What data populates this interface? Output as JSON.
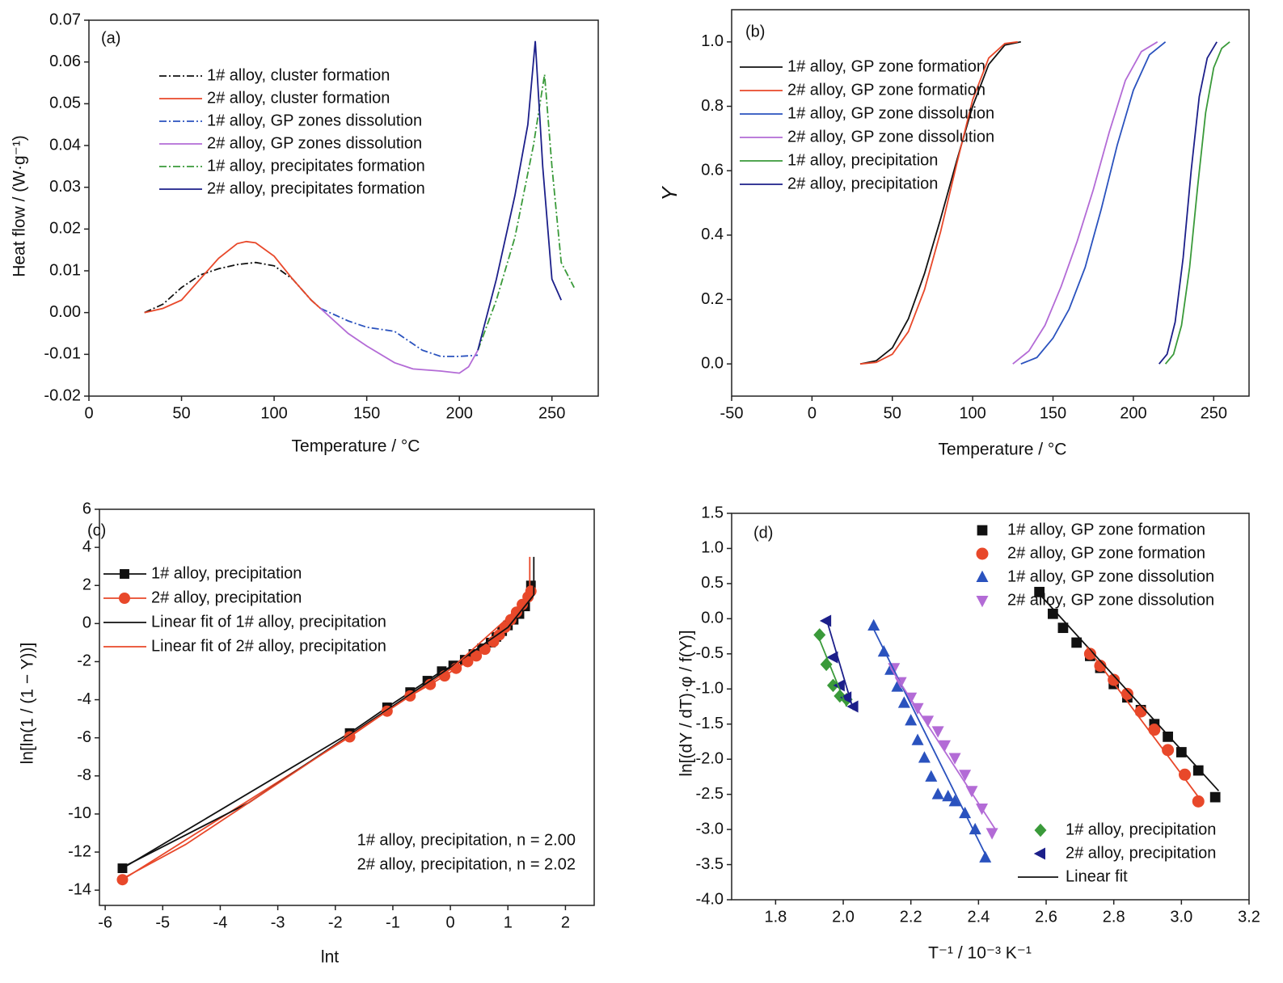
{
  "chart_data": [
    {
      "type": "line",
      "panel_label": "(a)",
      "x_label": "Temperature / °C",
      "y_label": "Heat flow / (W·g⁻¹)",
      "xlim": [
        0,
        275
      ],
      "xticks": [
        0,
        50,
        100,
        150,
        200,
        250
      ],
      "ylim": [
        -0.02,
        0.07
      ],
      "yticks": [
        -0.02,
        -0.01,
        {
          "value": 0,
          "label": "0.00"
        },
        0.01,
        0.02,
        0.03,
        0.04,
        0.05,
        0.06,
        0.07
      ],
      "legend_loc": "upper left",
      "series": [
        {
          "name": "1# alloy, cluster formation",
          "color": "#111111",
          "dash": "dashdot",
          "x": [
            30,
            40,
            50,
            60,
            70,
            80,
            90,
            100,
            110,
            120,
            125
          ],
          "values": [
            0,
            0.002,
            0.006,
            0.009,
            0.0105,
            0.0115,
            0.012,
            0.0112,
            0.008,
            0.003,
            0.001
          ]
        },
        {
          "name": "2# alloy, cluster formation",
          "color": "#e8482a",
          "x": [
            30,
            40,
            50,
            60,
            70,
            80,
            85,
            90,
            100,
            110,
            120,
            125
          ],
          "values": [
            0,
            0.001,
            0.003,
            0.008,
            0.013,
            0.0165,
            0.017,
            0.0167,
            0.0135,
            0.008,
            0.003,
            0.001
          ]
        },
        {
          "name": "1# alloy, GP zones dissolution",
          "color": "#2a52be",
          "dash": "dashdot",
          "x": [
            125,
            140,
            150,
            165,
            180,
            190,
            200,
            210
          ],
          "values": [
            0.001,
            -0.002,
            -0.0035,
            -0.0045,
            -0.009,
            -0.0105,
            -0.0105,
            -0.0102
          ]
        },
        {
          "name": "2# alloy, GP zones dissolution",
          "color": "#b36bd6",
          "x": [
            125,
            140,
            150,
            165,
            175,
            190,
            200,
            205,
            210
          ],
          "values": [
            0.001,
            -0.005,
            -0.008,
            -0.012,
            -0.0135,
            -0.014,
            -0.0145,
            -0.013,
            -0.009
          ]
        },
        {
          "name": "1# alloy, precipitates formation",
          "color": "#3a9a3a",
          "dash": "dashdot",
          "x": [
            210,
            220,
            230,
            240,
            246,
            250,
            255,
            262
          ],
          "values": [
            -0.009,
            0.003,
            0.018,
            0.04,
            0.057,
            0.035,
            0.012,
            0.006
          ]
        },
        {
          "name": "2# alloy, precipitates formation",
          "color": "#1c1f8a",
          "x": [
            210,
            220,
            230,
            237,
            241,
            245,
            250,
            255
          ],
          "values": [
            -0.009,
            0.008,
            0.028,
            0.045,
            0.065,
            0.035,
            0.008,
            0.003
          ]
        }
      ]
    },
    {
      "type": "line",
      "panel_label": "(b)",
      "x_label": "Temperature / °C",
      "y_label": "Y",
      "xlim": [
        -50,
        272
      ],
      "xticks": [
        -50,
        0,
        50,
        100,
        150,
        200,
        250
      ],
      "ylim": [
        -0.1,
        1.1
      ],
      "yticks": [
        {
          "value": 0,
          "label": "0.0"
        },
        0.2,
        0.4,
        0.6,
        0.8,
        {
          "value": 1,
          "label": "1.0"
        }
      ],
      "legend_loc": "upper left",
      "series": [
        {
          "name": "1# alloy, GP zone formation",
          "color": "#111111",
          "x": [
            30,
            40,
            50,
            60,
            70,
            80,
            90,
            100,
            110,
            120,
            130
          ],
          "values": [
            0,
            0.01,
            0.05,
            0.14,
            0.28,
            0.45,
            0.63,
            0.8,
            0.93,
            0.99,
            1.0
          ]
        },
        {
          "name": "2# alloy, GP zone formation",
          "color": "#e8482a",
          "x": [
            30,
            40,
            50,
            60,
            70,
            80,
            90,
            100,
            110,
            120,
            128
          ],
          "values": [
            0,
            0.005,
            0.03,
            0.1,
            0.23,
            0.41,
            0.62,
            0.82,
            0.95,
            0.995,
            1.0
          ]
        },
        {
          "name": "1# alloy, GP zone dissolution",
          "color": "#2a52be",
          "x": [
            130,
            140,
            150,
            160,
            170,
            180,
            190,
            200,
            210,
            220
          ],
          "values": [
            0,
            0.02,
            0.08,
            0.17,
            0.3,
            0.48,
            0.68,
            0.85,
            0.96,
            1.0
          ]
        },
        {
          "name": "2# alloy, GP zone dissolution",
          "color": "#b36bd6",
          "x": [
            125,
            135,
            145,
            155,
            165,
            175,
            185,
            195,
            205,
            215
          ],
          "values": [
            0,
            0.04,
            0.12,
            0.24,
            0.38,
            0.54,
            0.72,
            0.88,
            0.97,
            1.0
          ]
        },
        {
          "name": "1# alloy, precipitation",
          "color": "#3a9a3a",
          "x": [
            220,
            225,
            230,
            235,
            240,
            245,
            250,
            255,
            260
          ],
          "values": [
            0,
            0.03,
            0.12,
            0.3,
            0.55,
            0.78,
            0.92,
            0.98,
            1.0
          ]
        },
        {
          "name": "2# alloy, precipitation",
          "color": "#1c1f8a",
          "x": [
            216,
            221,
            226,
            231,
            236,
            241,
            246,
            252
          ],
          "values": [
            0,
            0.03,
            0.13,
            0.33,
            0.6,
            0.83,
            0.95,
            1.0
          ]
        }
      ]
    },
    {
      "type": "scatter",
      "panel_label": "(c)",
      "x_label": "lnt",
      "y_label": "ln[ln(1 / (1 − Y))]",
      "xlim": [
        -6.1,
        2.5
      ],
      "xticks": [
        -6,
        -5,
        -4,
        -3,
        -2,
        -1,
        0,
        1,
        2
      ],
      "ylim": [
        -14.8,
        6
      ],
      "yticks": [
        -14,
        -12,
        -10,
        -8,
        -6,
        -4,
        -2,
        0,
        2,
        4,
        6
      ],
      "legend_loc": "upper left",
      "annotations": [
        "1# alloy, precipitation, n = 2.00",
        "2# alloy, precipitation, n = 2.02"
      ],
      "series": [
        {
          "name": "1# alloy, precipitation",
          "color": "#111111",
          "mode": "lines+markers",
          "marker": "square",
          "x": [
            -5.7,
            -1.75,
            -1.1,
            -0.7,
            -0.4,
            -0.15,
            0.05,
            0.25,
            0.4,
            0.55,
            0.7,
            0.8,
            0.9,
            1.0,
            1.1,
            1.2,
            1.3,
            1.4
          ],
          "values": [
            -12.85,
            -5.75,
            -4.4,
            -3.6,
            -3.0,
            -2.5,
            -2.2,
            -1.9,
            -1.6,
            -1.3,
            -1.0,
            -0.7,
            -0.4,
            -0.1,
            0.2,
            0.5,
            0.9,
            2.0
          ]
        },
        {
          "name": "2# alloy, precipitation",
          "color": "#e8482a",
          "mode": "lines+markers",
          "marker": "circle",
          "x": [
            -5.7,
            -1.75,
            -1.1,
            -0.7,
            -0.35,
            -0.1,
            0.1,
            0.3,
            0.45,
            0.6,
            0.75,
            0.85,
            0.95,
            1.05,
            1.15,
            1.25,
            1.35,
            1.4
          ],
          "values": [
            -13.45,
            -5.95,
            -4.6,
            -3.8,
            -3.2,
            -2.75,
            -2.35,
            -2.0,
            -1.7,
            -1.35,
            -0.95,
            -0.6,
            -0.2,
            0.2,
            0.6,
            1.0,
            1.4,
            1.7
          ]
        },
        {
          "name": "Linear fit of 1# alloy, precipitation",
          "color": "#111111",
          "mode": "line",
          "x": [
            -5.7,
            -3.5,
            0,
            1.0,
            1.45,
            1.45
          ],
          "values": [
            -12.8,
            -9.4,
            -2.3,
            -0.2,
            1.5,
            3.5
          ]
        },
        {
          "name": "Linear fit of 2# alloy, precipitation",
          "color": "#e8482a",
          "mode": "line",
          "x": [
            -5.7,
            -4.6,
            -1.8,
            0,
            1.0,
            1.38,
            1.38
          ],
          "values": [
            -13.4,
            -11.6,
            -6.0,
            -2.4,
            0.3,
            1.6,
            3.5
          ]
        }
      ]
    },
    {
      "type": "scatter",
      "panel_label": "(d)",
      "x_label": "T⁻¹ / 10⁻³ K⁻¹",
      "y_label": "ln[(dY / dT)·φ / f(Y)]",
      "xlim": [
        1.67,
        3.2
      ],
      "xticks": [
        1.8,
        {
          "value": 2,
          "label": "2.0"
        },
        2.2,
        2.4,
        2.6,
        2.8,
        {
          "value": 3,
          "label": "3.0"
        },
        3.2
      ],
      "ylim": [
        -4,
        1.5
      ],
      "yticks": [
        {
          "value": -4,
          "label": "-4.0"
        },
        -3.5,
        {
          "value": -3,
          "label": "-3.0"
        },
        -2.5,
        {
          "value": -2,
          "label": "-2.0"
        },
        -1.5,
        {
          "value": -1,
          "label": "-1.0"
        },
        -0.5,
        {
          "value": 0,
          "label": "0.0"
        },
        0.5,
        {
          "value": 1,
          "label": "1.0"
        },
        1.5
      ],
      "legend_loc": "upper right",
      "series": [
        {
          "name": "1# alloy, GP zone formation",
          "color": "#111111",
          "mode": "markers",
          "marker": "square",
          "x": [
            2.58,
            2.62,
            2.65,
            2.69,
            2.73,
            2.76,
            2.8,
            2.84,
            2.88,
            2.92,
            2.96,
            3.0,
            3.05,
            3.1
          ],
          "values": [
            0.38,
            0.07,
            -0.13,
            -0.34,
            -0.53,
            -0.7,
            -0.93,
            -1.12,
            -1.3,
            -1.5,
            -1.68,
            -1.9,
            -2.16,
            -2.54
          ]
        },
        {
          "name": "2# alloy, GP zone formation",
          "color": "#e8482a",
          "mode": "markers",
          "marker": "circle",
          "x": [
            2.73,
            2.76,
            2.8,
            2.84,
            2.88,
            2.92,
            2.96,
            3.01,
            3.05
          ],
          "values": [
            -0.5,
            -0.67,
            -0.87,
            -1.07,
            -1.32,
            -1.58,
            -1.87,
            -2.22,
            -2.6
          ]
        },
        {
          "name": "1# alloy, GP zone dissolution",
          "color": "#2a52be",
          "mode": "markers",
          "marker": "triangle-up",
          "x": [
            2.09,
            2.12,
            2.14,
            2.16,
            2.18,
            2.2,
            2.22,
            2.24,
            2.26,
            2.28,
            2.31,
            2.33,
            2.36,
            2.39,
            2.42
          ],
          "values": [
            -0.1,
            -0.47,
            -0.73,
            -0.97,
            -1.2,
            -1.45,
            -1.73,
            -1.98,
            -2.25,
            -2.5,
            -2.53,
            -2.6,
            -2.77,
            -3.0,
            -3.4
          ]
        },
        {
          "name": "2# alloy, GP zone dissolution",
          "color": "#b36bd6",
          "mode": "markers",
          "marker": "triangle-down",
          "x": [
            2.15,
            2.17,
            2.2,
            2.22,
            2.25,
            2.28,
            2.3,
            2.33,
            2.36,
            2.38,
            2.41,
            2.44
          ],
          "values": [
            -0.7,
            -0.9,
            -1.12,
            -1.27,
            -1.45,
            -1.6,
            -1.8,
            -1.98,
            -2.22,
            -2.45,
            -2.7,
            -3.05
          ]
        },
        {
          "name": "1# alloy, precipitation",
          "color": "#3a9a3a",
          "mode": "markers",
          "marker": "diamond",
          "legend_loc": "lower right",
          "x": [
            1.93,
            1.95,
            1.97,
            1.99,
            2.01
          ],
          "values": [
            -0.23,
            -0.65,
            -0.95,
            -1.1,
            -1.15
          ]
        },
        {
          "name": "2# alloy, precipitation",
          "color": "#1c1f8a",
          "mode": "markers",
          "marker": "triangle-left",
          "legend_loc": "lower right",
          "x": [
            1.95,
            1.97,
            1.99,
            2.01,
            2.03
          ],
          "values": [
            -0.03,
            -0.55,
            -0.95,
            -1.12,
            -1.25
          ]
        },
        {
          "name": "Linear fit",
          "color": "#111111",
          "mode": "line",
          "legend_loc": "lower right",
          "x": [
            2.58,
            3.11
          ],
          "values": [
            0.35,
            -2.45
          ]
        },
        {
          "color": "#e8482a",
          "mode": "line",
          "x": [
            2.72,
            3.06
          ],
          "values": [
            -0.4,
            -2.6
          ]
        },
        {
          "color": "#2a52be",
          "mode": "line",
          "x": [
            2.09,
            2.42
          ],
          "values": [
            -0.15,
            -3.35
          ]
        },
        {
          "color": "#b36bd6",
          "mode": "line",
          "x": [
            2.14,
            2.45
          ],
          "values": [
            -0.7,
            -3.0
          ]
        },
        {
          "color": "#3a9a3a",
          "mode": "line",
          "x": [
            1.93,
            2.01
          ],
          "values": [
            -0.3,
            -1.25
          ]
        },
        {
          "color": "#1c1f8a",
          "mode": "line",
          "x": [
            1.95,
            2.03
          ],
          "values": [
            0,
            -1.3
          ]
        }
      ]
    }
  ]
}
